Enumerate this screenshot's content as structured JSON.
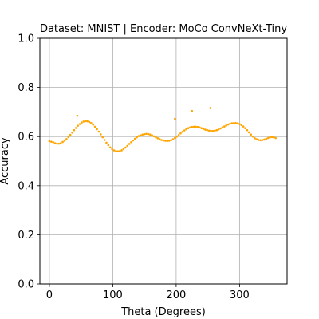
{
  "chart_data": {
    "type": "scatter",
    "title": "Dataset: MNIST | Encoder: MoCo ConvNeXt-Tiny",
    "xlabel": "Theta (Degrees)",
    "ylabel": "Accuracy",
    "xlim": [
      -15,
      375
    ],
    "ylim": [
      0.0,
      1.0
    ],
    "xticks": [
      0,
      100,
      200,
      300
    ],
    "xtick_labels": [
      "0",
      "100",
      "200",
      "300"
    ],
    "yticks": [
      0.0,
      0.2,
      0.4,
      0.6,
      0.8,
      1.0
    ],
    "ytick_labels": [
      "0.0",
      "0.2",
      "0.4",
      "0.6",
      "0.8",
      "1.0"
    ],
    "grid": true,
    "marker_color": "#ffa500",
    "series": [
      {
        "x": [
          0,
          3,
          6,
          9,
          12,
          15,
          18,
          21,
          24,
          27,
          30,
          33,
          36,
          39,
          42,
          45,
          48,
          51,
          54,
          57,
          60,
          63,
          66,
          69,
          72,
          75,
          78,
          81,
          84,
          87,
          90,
          93,
          96,
          99,
          102,
          105,
          108,
          111,
          114,
          117,
          120,
          123,
          126,
          129,
          132,
          135,
          138,
          141,
          144,
          147,
          150,
          153,
          156,
          159,
          162,
          165,
          168,
          171,
          174,
          177,
          180,
          183,
          186,
          189,
          192,
          195,
          198,
          201,
          204,
          207,
          210,
          213,
          216,
          219,
          222,
          225,
          228,
          231,
          234,
          237,
          240,
          243,
          246,
          249,
          252,
          255,
          258,
          261,
          264,
          267,
          270,
          273,
          276,
          279,
          282,
          285,
          288,
          291,
          294,
          297,
          300,
          303,
          306,
          309,
          312,
          315,
          318,
          321,
          324,
          327,
          330,
          333,
          336,
          339,
          342,
          345,
          348,
          351,
          354,
          357,
          44,
          198,
          225,
          254
        ],
        "y": [
          0.581,
          0.579,
          0.577,
          0.573,
          0.571,
          0.571,
          0.573,
          0.578,
          0.583,
          0.59,
          0.598,
          0.607,
          0.616,
          0.626,
          0.635,
          0.644,
          0.651,
          0.657,
          0.661,
          0.663,
          0.662,
          0.659,
          0.655,
          0.648,
          0.64,
          0.63,
          0.62,
          0.609,
          0.597,
          0.586,
          0.575,
          0.565,
          0.556,
          0.549,
          0.544,
          0.541,
          0.54,
          0.541,
          0.544,
          0.549,
          0.555,
          0.562,
          0.57,
          0.577,
          0.584,
          0.591,
          0.597,
          0.602,
          0.605,
          0.608,
          0.61,
          0.611,
          0.61,
          0.608,
          0.605,
          0.601,
          0.597,
          0.593,
          0.589,
          0.586,
          0.584,
          0.583,
          0.582,
          0.583,
          0.585,
          0.589,
          0.594,
          0.6,
          0.606,
          0.613,
          0.619,
          0.625,
          0.63,
          0.634,
          0.637,
          0.639,
          0.64,
          0.64,
          0.639,
          0.637,
          0.634,
          0.631,
          0.628,
          0.626,
          0.624,
          0.623,
          0.623,
          0.624,
          0.626,
          0.629,
          0.633,
          0.637,
          0.641,
          0.645,
          0.649,
          0.652,
          0.654,
          0.655,
          0.655,
          0.654,
          0.651,
          0.647,
          0.641,
          0.634,
          0.626,
          0.617,
          0.608,
          0.6,
          0.593,
          0.589,
          0.586,
          0.585,
          0.586,
          0.588,
          0.591,
          0.594,
          0.597,
          0.598,
          0.597,
          0.594,
          0.685,
          0.672,
          0.704,
          0.716
        ]
      }
    ]
  }
}
